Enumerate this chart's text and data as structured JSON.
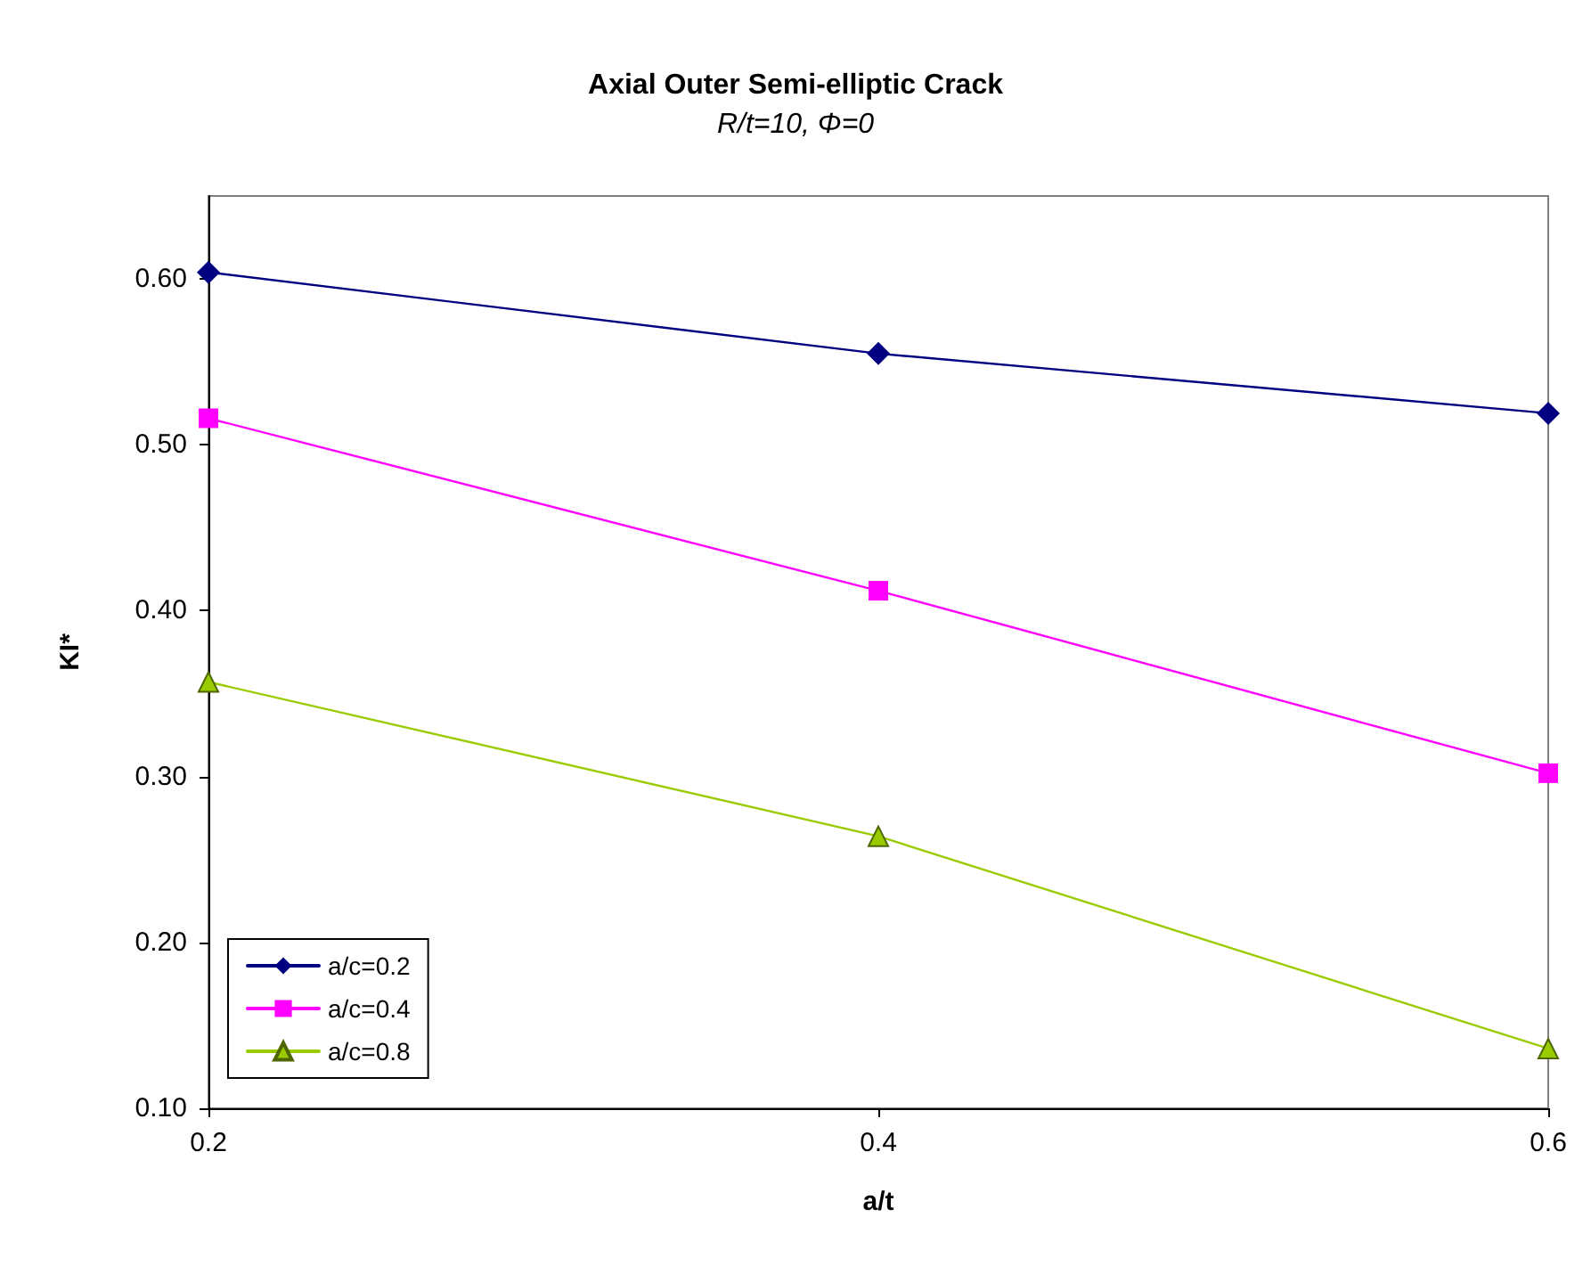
{
  "chart_data": {
    "type": "line",
    "title": "Axial Outer Semi-elliptic Crack",
    "subtitle": "R/t=10, Φ=0",
    "xlabel": "a/t",
    "ylabel": "KI*",
    "x": [
      0.2,
      0.4,
      0.6
    ],
    "series": [
      {
        "name": "a/c=0.2",
        "color": "#000080",
        "marker": "diamond",
        "values": [
          0.604,
          0.555,
          0.519
        ]
      },
      {
        "name": "a/c=0.4",
        "color": "#ff00ff",
        "marker": "square",
        "values": [
          0.516,
          0.412,
          0.302
        ]
      },
      {
        "name": "a/c=0.8",
        "color": "#99cc00",
        "marker": "triangle",
        "values": [
          0.357,
          0.264,
          0.136
        ]
      }
    ],
    "xlim": [
      0.2,
      0.6
    ],
    "xticks": [
      0.2,
      0.4,
      0.6
    ],
    "ylim": [
      0.1,
      0.65
    ],
    "yticks": [
      {
        "value": 0.1,
        "label": "0.10"
      },
      {
        "value": 0.2,
        "label": "0.20"
      },
      {
        "value": 0.3,
        "label": "0.30"
      },
      {
        "value": 0.4,
        "label": "0.40"
      },
      {
        "value": 0.5,
        "label": "0.50"
      },
      {
        "value": 0.6,
        "label": "0.60"
      }
    ],
    "grid": false,
    "legend": "bottom left",
    "line_style": "solid"
  }
}
